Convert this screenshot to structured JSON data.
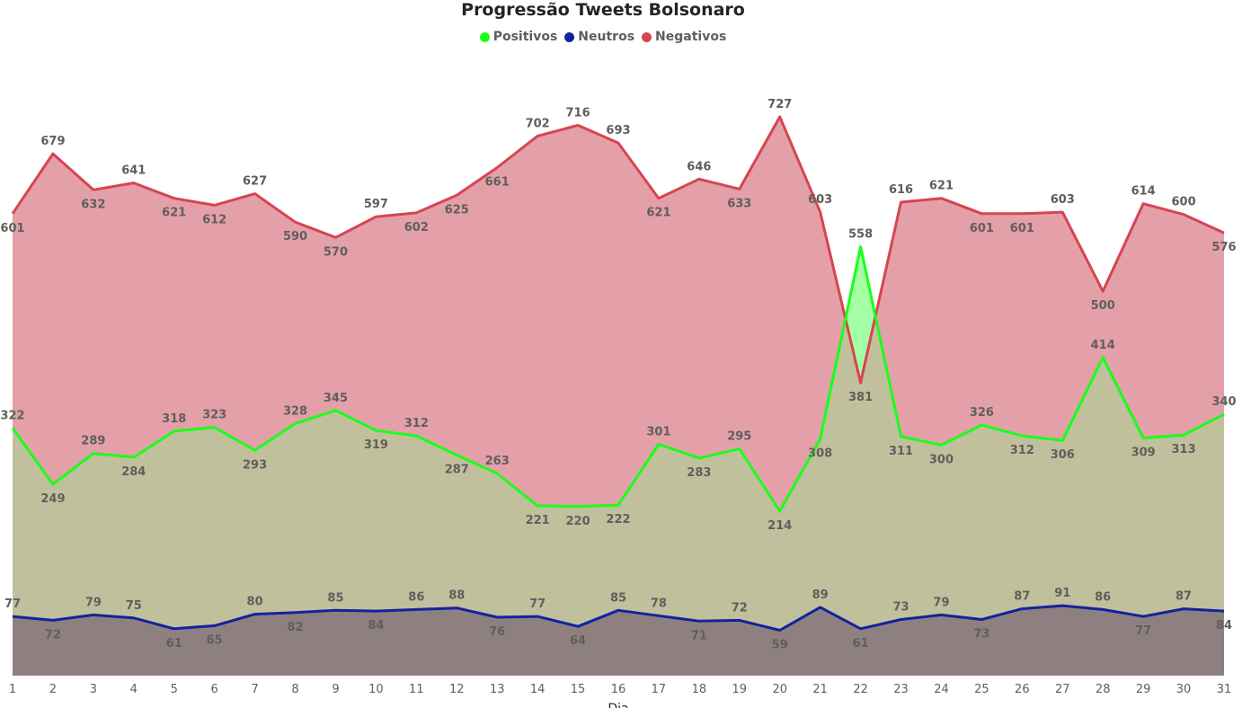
{
  "chart_data": {
    "type": "area",
    "title": "Progressão Tweets Bolsonaro",
    "xlabel": "Dia",
    "ylabel": "",
    "categories": [
      "1",
      "2",
      "3",
      "4",
      "5",
      "6",
      "7",
      "8",
      "9",
      "10",
      "11",
      "12",
      "13",
      "14",
      "15",
      "16",
      "17",
      "18",
      "19",
      "20",
      "21",
      "22",
      "23",
      "24",
      "25",
      "26",
      "27",
      "28",
      "29",
      "30",
      "31"
    ],
    "ylim": [
      0,
      727
    ],
    "legend_position": "top-center",
    "grid": false,
    "series": [
      {
        "name": "Positivos",
        "color": "#1aff1a",
        "fill": "#9fff9f",
        "values": [
          322,
          249,
          289,
          284,
          318,
          323,
          293,
          328,
          345,
          319,
          312,
          287,
          263,
          221,
          220,
          222,
          301,
          283,
          295,
          214,
          308,
          558,
          311,
          300,
          326,
          312,
          306,
          414,
          309,
          313,
          340
        ]
      },
      {
        "name": "Neutros",
        "color": "#12239e",
        "fill": "#8e8080",
        "values": [
          77,
          72,
          79,
          75,
          61,
          65,
          80,
          82,
          85,
          84,
          86,
          88,
          76,
          77,
          64,
          85,
          78,
          71,
          72,
          59,
          89,
          61,
          73,
          79,
          73,
          87,
          91,
          86,
          77,
          87,
          84
        ]
      },
      {
        "name": "Negativos",
        "color": "#d64550",
        "fill": "#f0b4b8",
        "values": [
          601,
          679,
          632,
          641,
          621,
          612,
          627,
          590,
          570,
          597,
          602,
          625,
          661,
          702,
          716,
          693,
          621,
          646,
          633,
          727,
          603,
          381,
          616,
          621,
          601,
          601,
          603,
          500,
          614,
          600,
          576
        ]
      }
    ]
  }
}
